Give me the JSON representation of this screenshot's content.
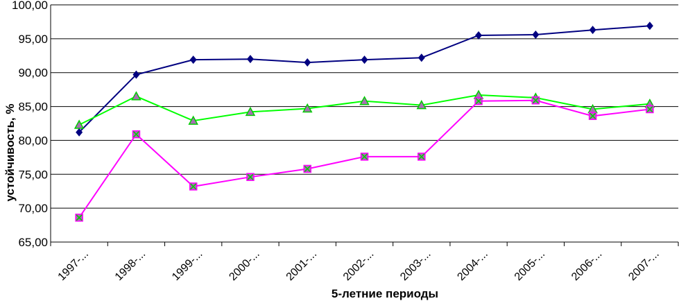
{
  "chart_data": {
    "type": "line",
    "xlabel": "5-летние периоды",
    "ylabel": "устойчивость, %",
    "ylim": [
      65,
      100
    ],
    "ytick_step": 5,
    "ytick_labels": [
      "65,00",
      "70,00",
      "75,00",
      "80,00",
      "85,00",
      "90,00",
      "95,00",
      "100,00"
    ],
    "categories": [
      "1997-...",
      "1998-...",
      "1999-...",
      "2000-...",
      "2001-...",
      "2002-...",
      "2003-...",
      "2004-...",
      "2005-...",
      "2006-...",
      "2007-..."
    ],
    "grid": "horizontal",
    "legend": "none",
    "series": [
      {
        "color": "#000080",
        "marker": "diamond",
        "values": [
          81.2,
          89.7,
          91.9,
          92.0,
          91.5,
          91.9,
          92.2,
          95.5,
          95.6,
          96.3,
          96.9
        ]
      },
      {
        "color": "#00ff00",
        "marker": "triangle",
        "values": [
          82.3,
          86.5,
          82.9,
          84.2,
          84.7,
          85.8,
          85.2,
          86.7,
          86.3,
          84.6,
          85.4
        ]
      },
      {
        "color": "#ff00ff",
        "marker": "square-x",
        "values": [
          68.6,
          80.9,
          73.2,
          74.6,
          75.8,
          77.6,
          77.6,
          85.8,
          85.9,
          83.6,
          84.6
        ]
      }
    ]
  }
}
